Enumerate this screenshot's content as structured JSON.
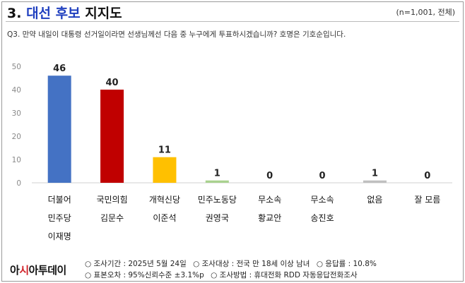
{
  "header": {
    "title_prefix": "3. ",
    "title_highlight": "대선 후보",
    "title_suffix": " 지지도",
    "sample_note": "(n=1,001, 전체)"
  },
  "question": "Q3. 만약 내일이 대통령 선거일이라면 선생님께선 다음 중 누구에게 투표하시겠습니까? 호명은 기호순입니다.",
  "chart_data": {
    "type": "bar",
    "categories": [
      [
        "더불어",
        "민주당",
        "이재명"
      ],
      [
        "국민의힘",
        "김문수"
      ],
      [
        "개혁신당",
        "이준석"
      ],
      [
        "민주노동당",
        "권영국"
      ],
      [
        "무소속",
        "황교안"
      ],
      [
        "무소속",
        "송진호"
      ],
      [
        "없음"
      ],
      [
        "잘 모름"
      ]
    ],
    "values": [
      46,
      40,
      11,
      1,
      0,
      0,
      1,
      0
    ],
    "colors": [
      "#4472c4",
      "#c00000",
      "#ffc000",
      "#a9d18e",
      "#bfbfbf",
      "#bfbfbf",
      "#bfbfbf",
      "#bfbfbf"
    ],
    "ylim": [
      0,
      50
    ],
    "yticks": [
      0,
      10,
      20,
      30,
      40,
      50
    ],
    "grid": false
  },
  "footer": {
    "logo_text_a": "아",
    "logo_dot": "시",
    "logo_text_b": "아투데이",
    "survey_period": "○ 조사기간 : 2025년 5월 24일",
    "survey_target": "○ 조사대상 : 전국 만 18세 이상 남녀",
    "response_rate": "○ 응답률 : 10.8%",
    "sampling_error": "○ 표본오차 : 95%신뢰수준 ±3.1%p",
    "survey_method": "○ 조사방법 : 휴대전화 RDD 자동응답전화조사"
  }
}
